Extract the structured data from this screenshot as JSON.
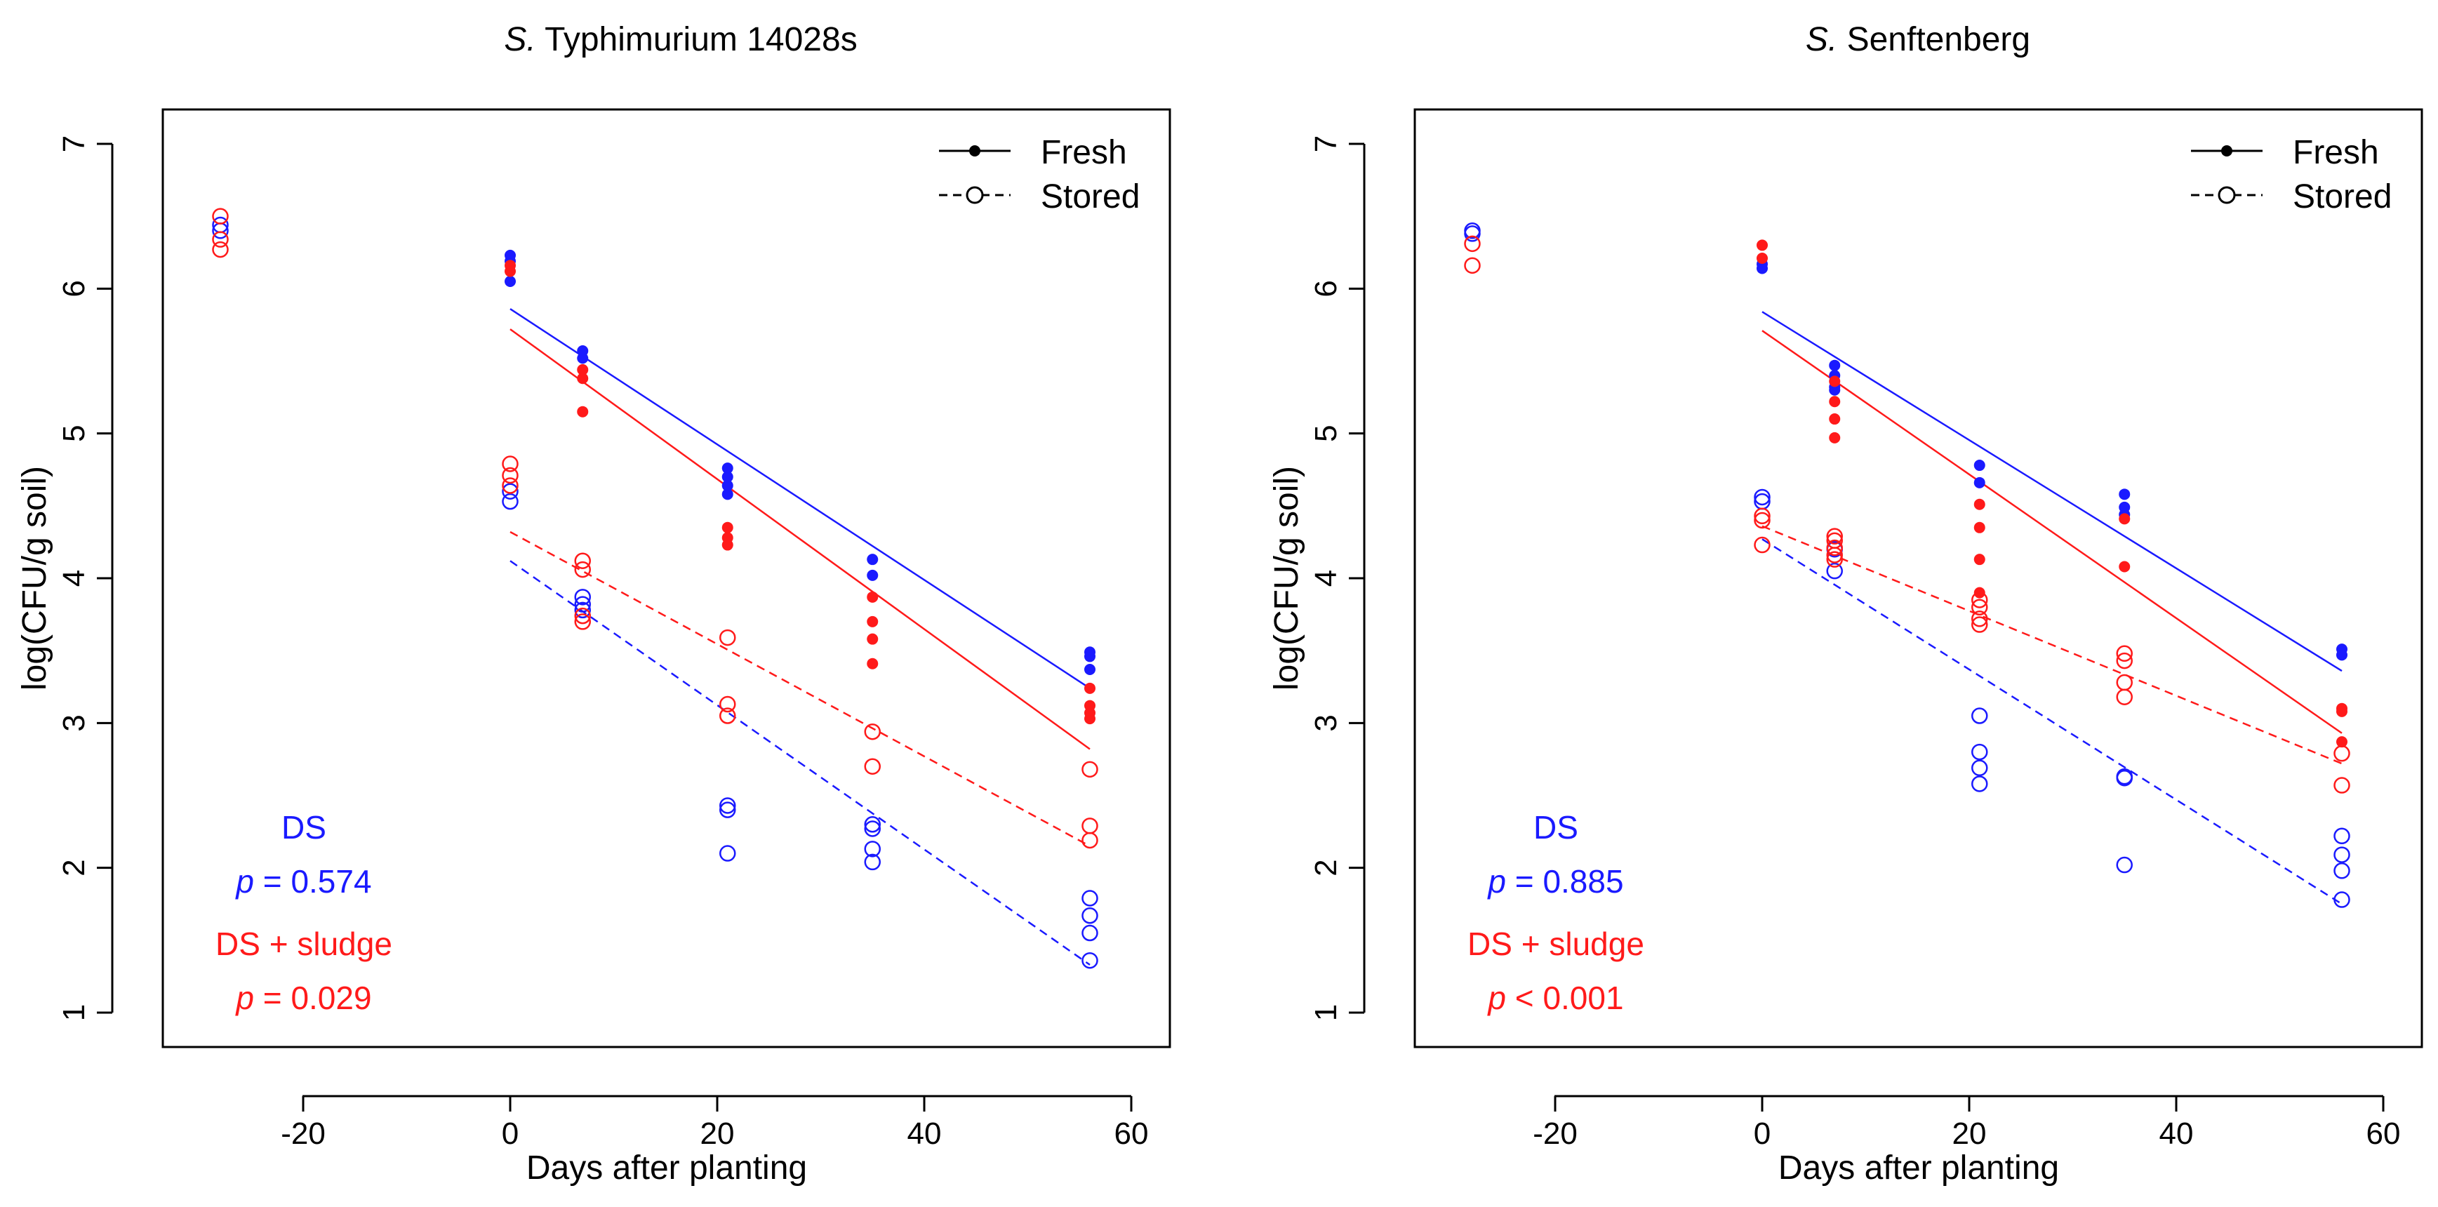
{
  "colors": {
    "ds": "#1a1aff",
    "sludge": "#ff1a1a",
    "axis": "#000000"
  },
  "chart_data": [
    {
      "type": "scatter",
      "title_italic": "S.",
      "title_rest": " Typhimurium 14028s",
      "xlabel": "Days after planting",
      "ylabel": "log(CFU/g soil)",
      "xlim": [
        -33,
        63
      ],
      "ylim": [
        0.8,
        7.2
      ],
      "xticks": [
        -20,
        0,
        20,
        40,
        60
      ],
      "xtick_labels": [
        "-20",
        "0",
        "20",
        "40",
        "60"
      ],
      "yticks": [
        1,
        2,
        3,
        4,
        5,
        6,
        7
      ],
      "ytick_labels": [
        "1",
        "2",
        "3",
        "4",
        "5",
        "6",
        "7"
      ],
      "legend": {
        "entries": [
          "Fresh",
          "Stored"
        ],
        "position": "top-right"
      },
      "annotations": [
        {
          "text": "DS",
          "color": "ds"
        },
        {
          "italic": "p",
          "text": " = 0.574",
          "color": "ds"
        },
        {
          "text": "DS + sludge",
          "color": "sludge"
        },
        {
          "italic": "p",
          "text": " = 0.029",
          "color": "sludge"
        }
      ],
      "points": [
        {
          "group": "ds",
          "storage": "stored",
          "x": -28,
          "y": [
            6.44,
            6.4
          ]
        },
        {
          "group": "sludge",
          "storage": "stored",
          "x": -28,
          "y": [
            6.5,
            6.34,
            6.27
          ]
        },
        {
          "group": "ds",
          "storage": "fresh",
          "x": 0,
          "y": [
            6.23,
            6.19,
            6.05
          ]
        },
        {
          "group": "sludge",
          "storage": "fresh",
          "x": 0,
          "y": [
            6.16,
            6.12
          ]
        },
        {
          "group": "ds",
          "storage": "stored",
          "x": 0,
          "y": [
            4.6,
            4.53
          ]
        },
        {
          "group": "sludge",
          "storage": "stored",
          "x": 0,
          "y": [
            4.79,
            4.71,
            4.64
          ]
        },
        {
          "group": "ds",
          "storage": "fresh",
          "x": 7,
          "y": [
            5.57,
            5.52
          ]
        },
        {
          "group": "sludge",
          "storage": "fresh",
          "x": 7,
          "y": [
            5.44,
            5.38,
            5.15
          ]
        },
        {
          "group": "ds",
          "storage": "stored",
          "x": 7,
          "y": [
            3.87,
            3.82,
            3.78
          ]
        },
        {
          "group": "sludge",
          "storage": "stored",
          "x": 7,
          "y": [
            4.12,
            4.06,
            3.74,
            3.7
          ]
        },
        {
          "group": "ds",
          "storage": "fresh",
          "x": 21,
          "y": [
            4.76,
            4.7,
            4.64,
            4.58
          ]
        },
        {
          "group": "sludge",
          "storage": "fresh",
          "x": 21,
          "y": [
            4.35,
            4.28,
            4.23
          ]
        },
        {
          "group": "ds",
          "storage": "stored",
          "x": 21,
          "y": [
            2.43,
            2.4,
            2.1
          ]
        },
        {
          "group": "sludge",
          "storage": "stored",
          "x": 21,
          "y": [
            3.59,
            3.13,
            3.05
          ]
        },
        {
          "group": "ds",
          "storage": "fresh",
          "x": 35,
          "y": [
            4.13,
            4.02
          ]
        },
        {
          "group": "sludge",
          "storage": "fresh",
          "x": 35,
          "y": [
            3.87,
            3.7,
            3.58,
            3.41
          ]
        },
        {
          "group": "ds",
          "storage": "stored",
          "x": 35,
          "y": [
            2.3,
            2.27,
            2.13,
            2.04
          ]
        },
        {
          "group": "sludge",
          "storage": "stored",
          "x": 35,
          "y": [
            2.94,
            2.7
          ]
        },
        {
          "group": "ds",
          "storage": "fresh",
          "x": 56,
          "y": [
            3.49,
            3.46,
            3.37
          ]
        },
        {
          "group": "sludge",
          "storage": "fresh",
          "x": 56,
          "y": [
            3.24,
            3.12,
            3.07,
            3.03
          ]
        },
        {
          "group": "ds",
          "storage": "stored",
          "x": 56,
          "y": [
            1.79,
            1.67,
            1.55,
            1.36
          ]
        },
        {
          "group": "sludge",
          "storage": "stored",
          "x": 56,
          "y": [
            2.68,
            2.29,
            2.19
          ]
        }
      ],
      "fits": [
        {
          "group": "ds",
          "storage": "fresh",
          "x": [
            0,
            56
          ],
          "y": [
            5.86,
            3.24
          ]
        },
        {
          "group": "sludge",
          "storage": "fresh",
          "x": [
            0,
            56
          ],
          "y": [
            5.72,
            2.82
          ]
        },
        {
          "group": "sludge",
          "storage": "stored",
          "x": [
            0,
            56
          ],
          "y": [
            4.32,
            2.15
          ]
        },
        {
          "group": "ds",
          "storage": "stored",
          "x": [
            0,
            56
          ],
          "y": [
            4.12,
            1.33
          ]
        }
      ]
    },
    {
      "type": "scatter",
      "title_italic": "S.",
      "title_rest": " Senftenberg",
      "xlabel": "Days after planting",
      "ylabel": "log(CFU/g soil)",
      "xlim": [
        -33,
        63
      ],
      "ylim": [
        0.8,
        7.2
      ],
      "xticks": [
        -20,
        0,
        20,
        40,
        60
      ],
      "xtick_labels": [
        "-20",
        "0",
        "20",
        "40",
        "60"
      ],
      "yticks": [
        1,
        2,
        3,
        4,
        5,
        6,
        7
      ],
      "ytick_labels": [
        "1",
        "2",
        "3",
        "4",
        "5",
        "6",
        "7"
      ],
      "legend": {
        "entries": [
          "Fresh",
          "Stored"
        ],
        "position": "top-right"
      },
      "annotations": [
        {
          "text": "DS",
          "color": "ds"
        },
        {
          "italic": "p",
          "text": " = 0.885",
          "color": "ds"
        },
        {
          "text": "DS + sludge",
          "color": "sludge"
        },
        {
          "italic": "p",
          "text": " < 0.001",
          "color": "sludge"
        }
      ],
      "points": [
        {
          "group": "ds",
          "storage": "stored",
          "x": -28,
          "y": [
            6.4,
            6.38
          ]
        },
        {
          "group": "sludge",
          "storage": "stored",
          "x": -28,
          "y": [
            6.31,
            6.16
          ]
        },
        {
          "group": "ds",
          "storage": "fresh",
          "x": 0,
          "y": [
            6.17,
            6.14
          ]
        },
        {
          "group": "sludge",
          "storage": "fresh",
          "x": 0,
          "y": [
            6.3,
            6.21
          ]
        },
        {
          "group": "ds",
          "storage": "stored",
          "x": 0,
          "y": [
            4.56,
            4.53
          ]
        },
        {
          "group": "sludge",
          "storage": "stored",
          "x": 0,
          "y": [
            4.43,
            4.4,
            4.23
          ]
        },
        {
          "group": "ds",
          "storage": "fresh",
          "x": 7,
          "y": [
            5.47,
            5.4,
            5.32,
            5.3
          ]
        },
        {
          "group": "sludge",
          "storage": "fresh",
          "x": 7,
          "y": [
            5.36,
            5.22,
            5.1,
            4.97
          ]
        },
        {
          "group": "ds",
          "storage": "stored",
          "x": 7,
          "y": [
            4.2,
            4.05
          ]
        },
        {
          "group": "sludge",
          "storage": "stored",
          "x": 7,
          "y": [
            4.29,
            4.26,
            4.21,
            4.16,
            4.13
          ]
        },
        {
          "group": "ds",
          "storage": "fresh",
          "x": 21,
          "y": [
            4.78,
            4.66
          ]
        },
        {
          "group": "sludge",
          "storage": "fresh",
          "x": 21,
          "y": [
            4.51,
            4.35,
            4.13,
            3.9
          ]
        },
        {
          "group": "ds",
          "storage": "stored",
          "x": 21,
          "y": [
            3.05,
            2.8,
            2.69,
            2.58
          ]
        },
        {
          "group": "sludge",
          "storage": "stored",
          "x": 21,
          "y": [
            3.85,
            3.8,
            3.72,
            3.68
          ]
        },
        {
          "group": "ds",
          "storage": "fresh",
          "x": 35,
          "y": [
            4.58,
            4.49,
            4.44
          ]
        },
        {
          "group": "sludge",
          "storage": "fresh",
          "x": 35,
          "y": [
            4.41,
            4.08
          ]
        },
        {
          "group": "ds",
          "storage": "stored",
          "x": 35,
          "y": [
            2.63,
            2.62,
            2.02
          ]
        },
        {
          "group": "sludge",
          "storage": "stored",
          "x": 35,
          "y": [
            3.48,
            3.43,
            3.28,
            3.18
          ]
        },
        {
          "group": "ds",
          "storage": "fresh",
          "x": 56,
          "y": [
            3.51,
            3.47
          ]
        },
        {
          "group": "sludge",
          "storage": "fresh",
          "x": 56,
          "y": [
            3.1,
            3.08,
            2.87
          ]
        },
        {
          "group": "ds",
          "storage": "stored",
          "x": 56,
          "y": [
            2.22,
            2.09,
            1.98,
            1.78
          ]
        },
        {
          "group": "sludge",
          "storage": "stored",
          "x": 56,
          "y": [
            2.79,
            2.57
          ]
        }
      ],
      "fits": [
        {
          "group": "ds",
          "storage": "fresh",
          "x": [
            0,
            56
          ],
          "y": [
            5.84,
            3.36
          ]
        },
        {
          "group": "sludge",
          "storage": "fresh",
          "x": [
            0,
            56
          ],
          "y": [
            5.71,
            2.93
          ]
        },
        {
          "group": "sludge",
          "storage": "stored",
          "x": [
            0,
            56
          ],
          "y": [
            4.36,
            2.72
          ]
        },
        {
          "group": "ds",
          "storage": "stored",
          "x": [
            0,
            56
          ],
          "y": [
            4.27,
            1.75
          ]
        }
      ]
    }
  ]
}
